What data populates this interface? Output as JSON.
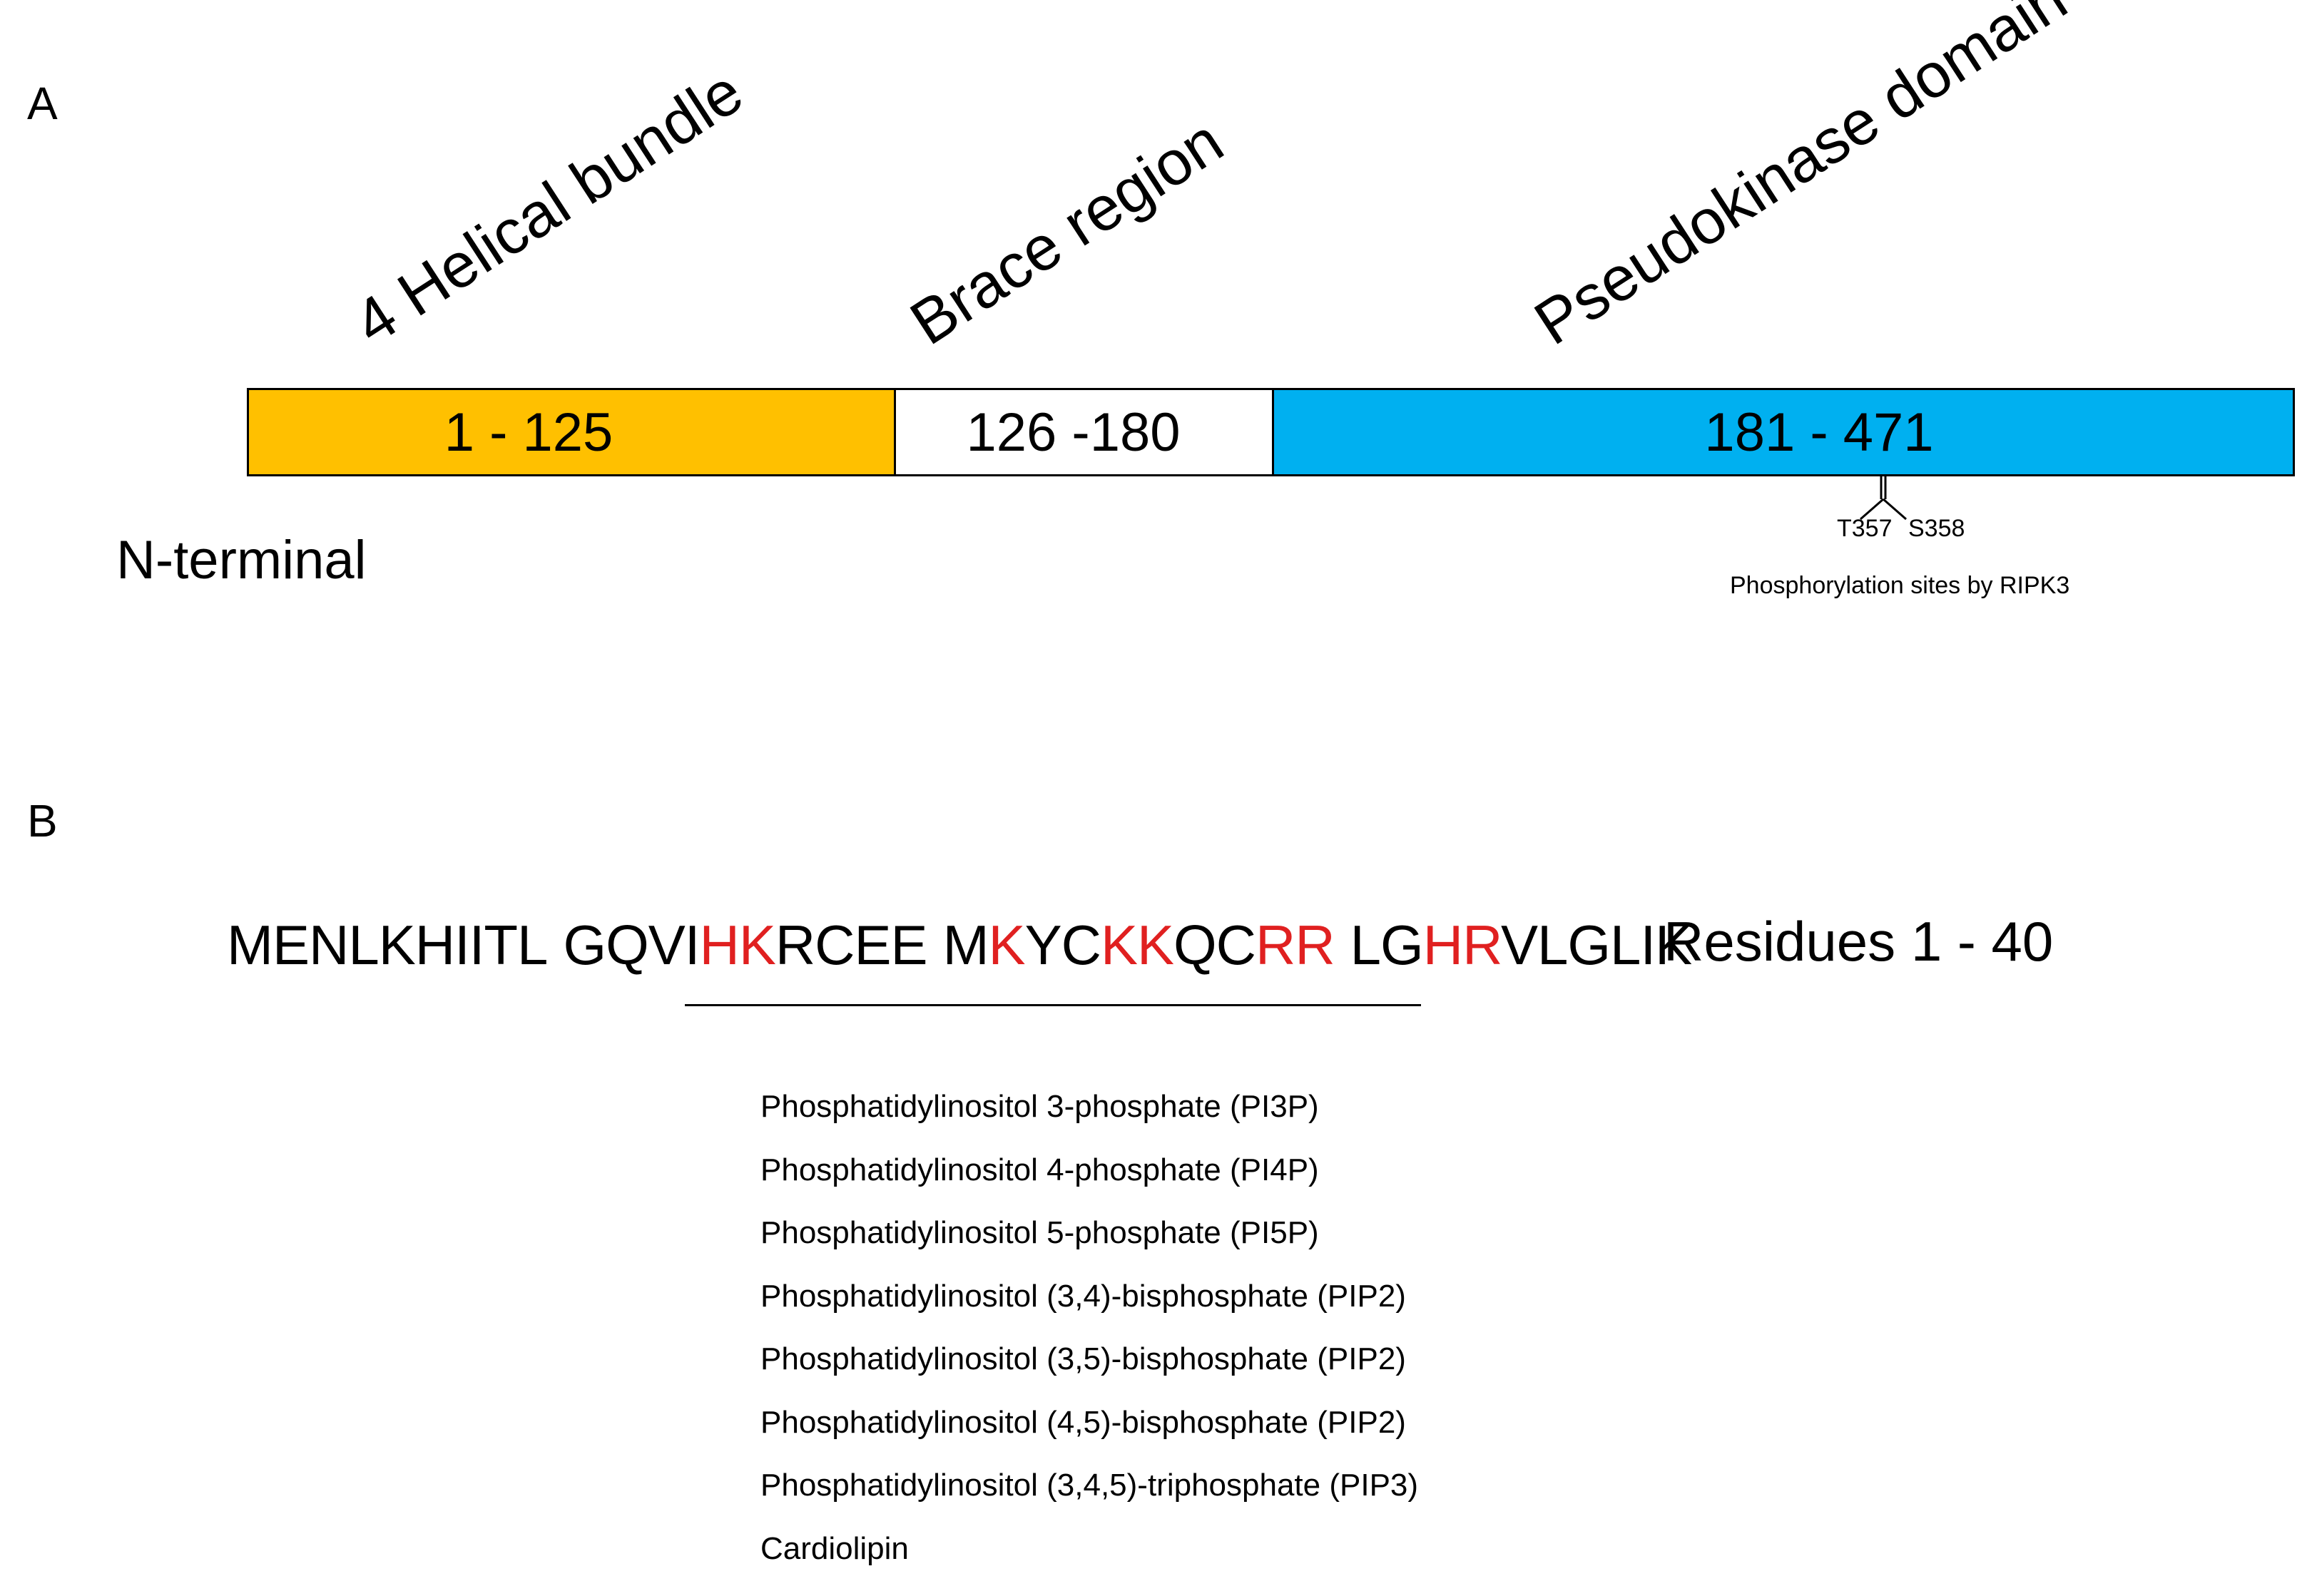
{
  "panel_a": {
    "letter": "A",
    "domains": [
      {
        "title": "4 Helical bundle",
        "range": "1 - 125",
        "color": "#FFC000"
      },
      {
        "title": "Brace region",
        "range": "126 -180",
        "color": "#FFFFFF"
      },
      {
        "title": "Pseudokinase domain",
        "range": "181 - 471",
        "color": "#00B0F0"
      }
    ],
    "n_terminal": "N-terminal",
    "sites": [
      "T357",
      "S358"
    ],
    "sites_caption": "Phosphorylation sites by RIPK3"
  },
  "panel_b": {
    "letter": "B",
    "sequence_groups": [
      [
        {
          "text": "MENLKHIITL",
          "basic": false
        }
      ],
      [
        {
          "text": "GQVI",
          "basic": false
        },
        {
          "text": "HK",
          "basic": true
        },
        {
          "text": "RCEE",
          "basic": false
        }
      ],
      [
        {
          "text": "M",
          "basic": false
        },
        {
          "text": "K",
          "basic": true
        },
        {
          "text": "YC",
          "basic": false
        },
        {
          "text": "KK",
          "basic": true
        },
        {
          "text": "QC",
          "basic": false
        },
        {
          "text": "RR",
          "basic": true
        }
      ],
      [
        {
          "text": "LG",
          "basic": false
        },
        {
          "text": "HR",
          "basic": true
        },
        {
          "text": "VLGLIK",
          "basic": false
        }
      ]
    ],
    "basic_residue_color": "#E02020",
    "residues_label": "Residues 1 - 40",
    "lipids": [
      "Phosphatidylinositol 3-phosphate (PI3P)",
      "Phosphatidylinositol 4-phosphate (PI4P)",
      "Phosphatidylinositol 5-phosphate (PI5P)",
      "Phosphatidylinositol (3,4)-bisphosphate (PIP2)",
      "Phosphatidylinositol (3,5)-bisphosphate (PIP2)",
      "Phosphatidylinositol (4,5)-bisphosphate (PIP2)",
      "Phosphatidylinositol (3,4,5)-triphosphate (PIP3)",
      "Cardiolipin"
    ]
  }
}
